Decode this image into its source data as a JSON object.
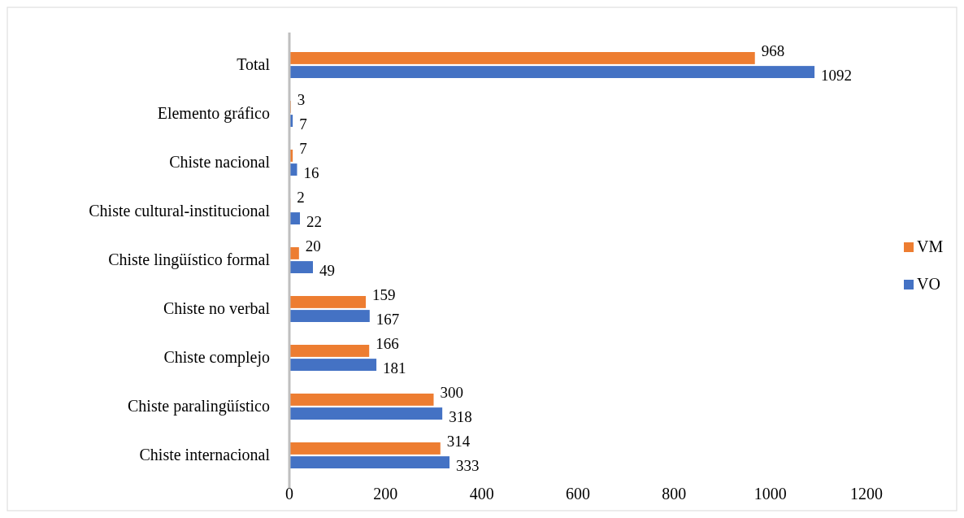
{
  "chart_data": {
    "type": "bar",
    "orientation": "horizontal",
    "categories": [
      "Total",
      "Elemento gráfico",
      "Chiste nacional",
      "Chiste cultural-institucional",
      "Chiste lingüístico formal",
      "Chiste no verbal",
      "Chiste complejo",
      "Chiste paralingüístico",
      "Chiste internacional"
    ],
    "series": [
      {
        "name": "VM",
        "color": "#ed7d31",
        "values": [
          968,
          3,
          7,
          2,
          20,
          159,
          166,
          300,
          314
        ]
      },
      {
        "name": "VO",
        "color": "#4472c4",
        "values": [
          1092,
          7,
          16,
          22,
          49,
          167,
          181,
          318,
          333
        ]
      }
    ],
    "xlim": [
      0,
      1200
    ],
    "xticks": [
      0,
      200,
      400,
      600,
      800,
      1000,
      1200
    ],
    "data_labels": true,
    "legend": "right",
    "grid": false
  }
}
